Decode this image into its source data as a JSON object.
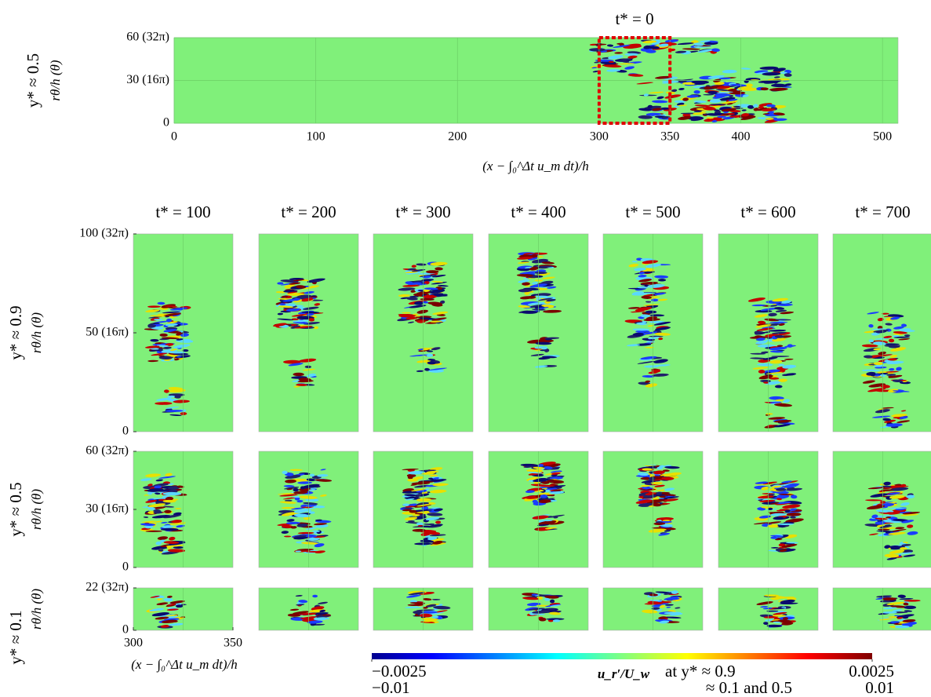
{
  "chart_data": [
    {
      "type": "heatmap",
      "title": "t* = 0",
      "row_label": "y* ≈ 0.5",
      "ylabel": "rθ/h (θ)",
      "xlabel": "(x − ∫₀^Δt u_m dt)/h",
      "xlim": [
        0,
        511
      ],
      "ylim": [
        0,
        60
      ],
      "xticks": [
        0,
        100,
        200,
        300,
        350,
        400,
        500
      ],
      "yticks": [
        0,
        {
          "value": 30,
          "label": "30 (16π)"
        },
        {
          "value": 60,
          "label": "60 (32π)"
        }
      ],
      "highlight_x": [
        300,
        350
      ],
      "highlight_color": "#e00000",
      "background": "#80f07a",
      "grid": true
    },
    {
      "type": "heatmap-grid",
      "xlabel": "(x − ∫₀^Δt u_m dt)/h",
      "xlim": [
        300,
        350
      ],
      "xticks": [
        300,
        350
      ],
      "background": "#80f07a",
      "columns": [
        "t* = 100",
        "t* = 200",
        "t* = 300",
        "t* = 400",
        "t* = 500",
        "t* = 600",
        "t* = 700"
      ],
      "rows": [
        {
          "row_label": "y* ≈ 0.9",
          "ylabel": "rθ/h (θ)",
          "ylim": [
            0,
            100
          ],
          "yticks": [
            0,
            {
              "value": 50,
              "label": "50 (16π)"
            },
            {
              "value": 100,
              "label": "100 (32π)"
            }
          ]
        },
        {
          "row_label": "y* ≈ 0.5",
          "ylabel": "rθ/h (θ)",
          "ylim": [
            0,
            60
          ],
          "yticks": [
            0,
            {
              "value": 30,
              "label": "30 (16π)"
            },
            {
              "value": 60,
              "label": "60 (32π)"
            }
          ]
        },
        {
          "row_label": "y* ≈ 0.1",
          "ylabel": "rθ/h (θ)",
          "ylim": [
            0,
            22
          ],
          "yticks": [
            0,
            {
              "value": 22,
              "label": "22 (32π)"
            }
          ]
        }
      ]
    },
    {
      "type": "colorbar",
      "label": "u_r′/U_w",
      "note_1": "at y* ≈ 0.9",
      "note_2": "≈ 0.1 and 0.5",
      "clim": [
        -0.0025,
        0.0025
      ],
      "ticks": [
        {
          "value": -0.0025,
          "label": "−0.0025"
        },
        0.0025
      ],
      "clim2": [
        -0.01,
        0.01
      ],
      "ticks2": [
        {
          "value": -0.01,
          "label": "−0.01"
        },
        0.01
      ]
    }
  ]
}
